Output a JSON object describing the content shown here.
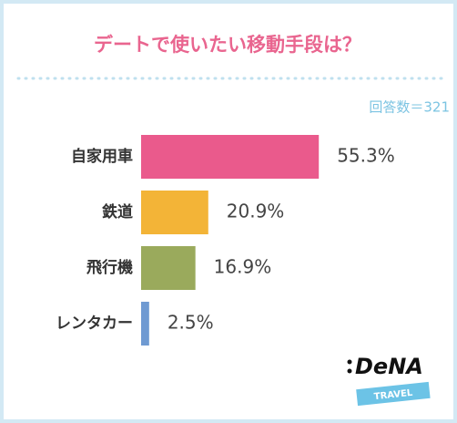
{
  "chart_data": {
    "type": "hbar",
    "title": "デートで使いたい移動手段は？",
    "annotation": "回答数＝321",
    "categories": [
      "自家用車",
      "鉄道",
      "飛行機",
      "レンタカー"
    ],
    "values": [
      55.3,
      20.9,
      16.9,
      2.5
    ],
    "value_labels": [
      "55.3%",
      "20.9%",
      "16.9%",
      "2.5%"
    ],
    "colors": [
      "#ea5a8c",
      "#f3b437",
      "#9aaa5c",
      "#6f9ad2"
    ],
    "logo": {
      "brand": "DeNA",
      "sub": "TRAVEL"
    }
  }
}
